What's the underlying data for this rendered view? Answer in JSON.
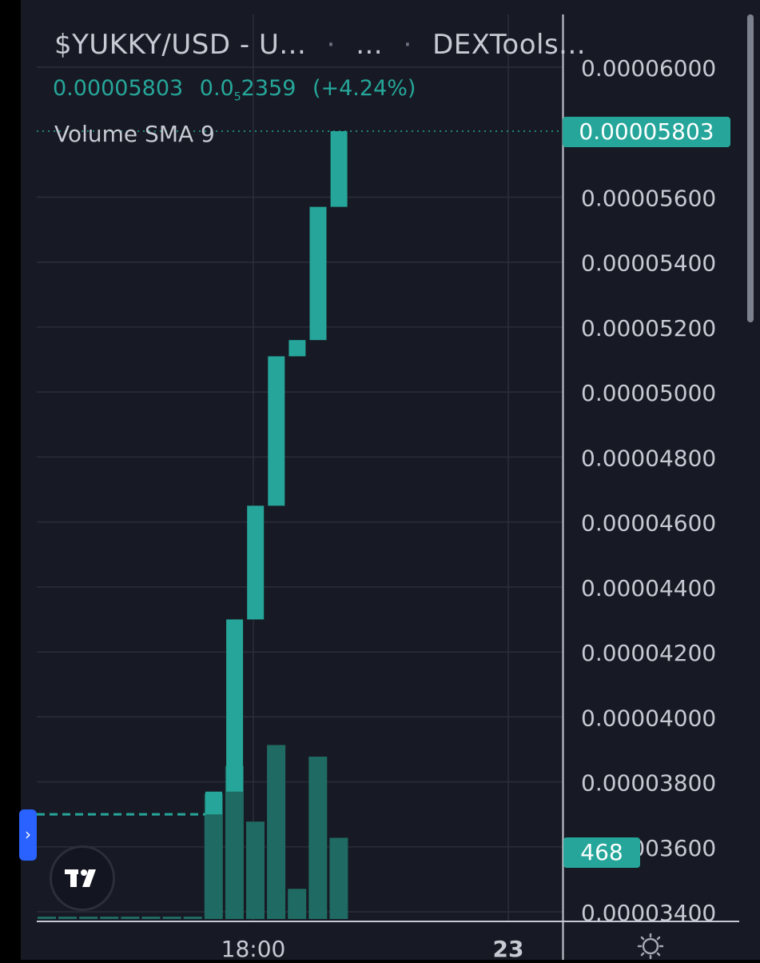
{
  "header": {
    "symbol": "$YUKKY/USD",
    "name_truncated": "U...",
    "interval_truncated": "...",
    "source_truncated": "DEXTools...",
    "price": "0.00005803",
    "change_prefix": "0.0",
    "change_subscript": "5",
    "change_digits": "2359",
    "change_percent": "(+4.24%)",
    "volume_indicator": "Volume SMA 9"
  },
  "price_tag": "0.00005803",
  "volume_tag": "468",
  "handle_glyph": "›",
  "colors": {
    "background": "#171a24",
    "up": "#26a69a",
    "volume": "#1f6a62",
    "grid": "#2a2e39",
    "text": "#c8cad3"
  },
  "icons": [
    "tradingview-logo-icon",
    "settings-sun-icon",
    "expand-chevron-icon"
  ],
  "chart_data": {
    "type": "candlestick",
    "title": "",
    "y_axis": {
      "position": "right",
      "ticks": [
        "0.00003400",
        "0.00003600",
        "0.00003800",
        "0.00004000",
        "0.00004200",
        "0.00004400",
        "0.00004600",
        "0.00004800",
        "0.00005000",
        "0.00005200",
        "0.00005400",
        "0.00005600",
        "0.00006000"
      ],
      "range": [
        3.38e-05,
        6.22e-05
      ]
    },
    "x_axis": {
      "ticks": [
        {
          "label": "18:00",
          "bold": false
        },
        {
          "label": "23",
          "bold": true
        }
      ]
    },
    "grid": true,
    "last_price": 5.803e-05,
    "reference_price": 3.7e-05,
    "candles": [
      {
        "open": 3.7e-05,
        "close": 3.77e-05
      },
      {
        "open": 3.77e-05,
        "close": 4.3e-05
      },
      {
        "open": 4.3e-05,
        "close": 4.65e-05
      },
      {
        "open": 4.65e-05,
        "close": 5.11e-05
      },
      {
        "open": 5.11e-05,
        "close": 5.16e-05
      },
      {
        "open": 5.16e-05,
        "close": 5.57e-05
      },
      {
        "open": 5.57e-05,
        "close": 5.803e-05
      }
    ],
    "volume_series": {
      "name": "Volume",
      "last_value": 468,
      "relative_values": [
        0.01,
        0.01,
        0.01,
        0.01,
        0.01,
        0.01,
        0.01,
        0.01,
        0.54,
        0.66,
        0.42,
        0.75,
        0.13,
        0.7,
        0.35
      ]
    }
  }
}
